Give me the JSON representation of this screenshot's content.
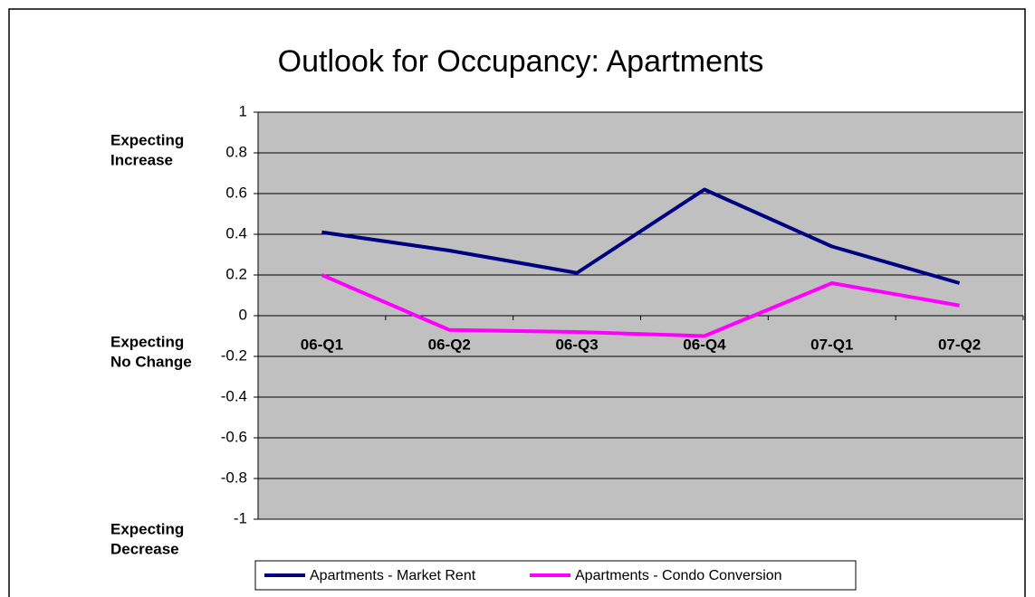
{
  "chart_data": {
    "type": "line",
    "title": "Outlook for Occupancy:  Apartments",
    "categories": [
      "06-Q1",
      "06-Q2",
      "06-Q3",
      "06-Q4",
      "07-Q1",
      "07-Q2"
    ],
    "series": [
      {
        "name": "Apartments - Market Rent",
        "color": "#000080",
        "values": [
          0.41,
          0.32,
          0.21,
          0.62,
          0.34,
          0.16
        ]
      },
      {
        "name": "Apartments - Condo Conversion",
        "color": "#ff00ff",
        "values": [
          0.2,
          -0.07,
          -0.08,
          -0.1,
          0.16,
          0.05
        ]
      }
    ],
    "ylim": [
      -1,
      1
    ],
    "yticks": [
      -1,
      -0.8,
      -0.6,
      -0.4,
      -0.2,
      0,
      0.2,
      0.4,
      0.6,
      0.8,
      1
    ],
    "grid": true,
    "legend": "bottom",
    "annotations": [
      [
        "Expecting",
        "Increase"
      ],
      [
        "Expecting",
        "No Change"
      ],
      [
        "Expecting",
        "Decrease"
      ]
    ]
  }
}
